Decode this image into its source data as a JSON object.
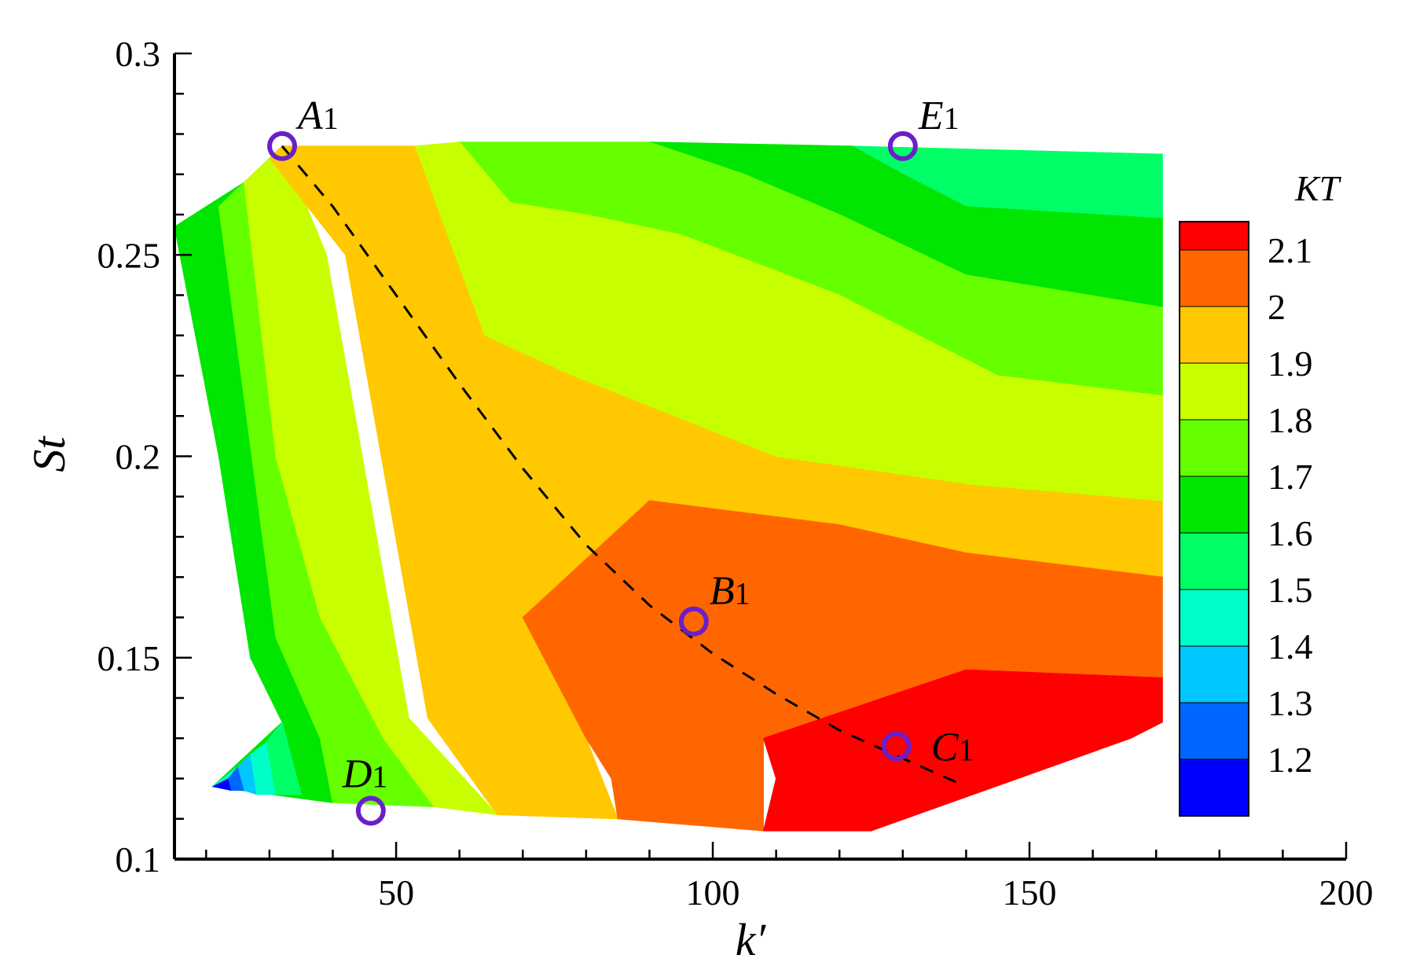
{
  "chart_data": {
    "type": "heatmap",
    "xlabel": "k′",
    "ylabel": "St",
    "xlim": [
      15,
      200
    ],
    "ylim": [
      0.1,
      0.3
    ],
    "x_ticks": [
      50,
      100,
      150,
      200
    ],
    "x_tick_labels": [
      "50",
      "100",
      "150",
      "200"
    ],
    "y_ticks": [
      0.1,
      0.15,
      0.2,
      0.25,
      0.3
    ],
    "y_tick_labels": [
      "0.1",
      "0.15",
      "0.2",
      "0.25",
      "0.3"
    ],
    "colorbar": {
      "title": "KT",
      "levels": [
        "2.1",
        "2",
        "1.9",
        "1.8",
        "1.7",
        "1.6",
        "1.5",
        "1.4",
        "1.3",
        "1.2"
      ],
      "colors": [
        "#ff0000",
        "#ff6600",
        "#ffc800",
        "#c8ff00",
        "#66ff00",
        "#00e600",
        "#00ff66",
        "#00ffc8",
        "#00c8ff",
        "#0066ff",
        "#0000ff"
      ]
    },
    "domain_outline": [
      [
        32,
        0.277
      ],
      [
        171,
        0.275
      ],
      [
        171,
        0.134
      ],
      [
        166,
        0.13
      ],
      [
        125,
        0.107
      ],
      [
        65,
        0.111
      ],
      [
        36,
        0.114
      ],
      [
        21,
        0.118
      ],
      [
        32,
        0.134
      ],
      [
        32,
        0.118
      ],
      [
        15,
        0.257
      ],
      [
        26,
        0.268
      ]
    ],
    "regions": [
      {
        "level": "1.6-1.7",
        "color": "#00e600",
        "polygon": [
          [
            15,
            0.257
          ],
          [
            26,
            0.268
          ],
          [
            32,
            0.277
          ],
          [
            37,
            0.15
          ],
          [
            40,
            0.114
          ],
          [
            21,
            0.118
          ],
          [
            32,
            0.134
          ],
          [
            27,
            0.15
          ],
          [
            22,
            0.2
          ]
        ]
      },
      {
        "level": "1.7-1.8",
        "color": "#66ff00",
        "polygon": [
          [
            22,
            0.262
          ],
          [
            26,
            0.268
          ],
          [
            32,
            0.277
          ],
          [
            45,
            0.14
          ],
          [
            56,
            0.113
          ],
          [
            40,
            0.114
          ],
          [
            38,
            0.13
          ],
          [
            31,
            0.155
          ]
        ]
      },
      {
        "level": "1.8-1.9",
        "color": "#c8ff00",
        "polygon": [
          [
            26,
            0.268
          ],
          [
            32,
            0.277
          ],
          [
            39,
            0.25
          ],
          [
            52,
            0.135
          ],
          [
            66,
            0.111
          ],
          [
            56,
            0.113
          ],
          [
            48,
            0.13
          ],
          [
            38,
            0.16
          ],
          [
            31,
            0.2
          ]
        ]
      },
      {
        "level": "1.9-2",
        "color": "#ffc800",
        "polygon": [
          [
            30,
            0.274
          ],
          [
            32,
            0.277
          ],
          [
            53,
            0.277
          ],
          [
            64,
            0.23
          ],
          [
            78,
            0.22
          ],
          [
            110,
            0.2
          ],
          [
            141,
            0.193
          ],
          [
            171,
            0.189
          ],
          [
            171,
            0.17
          ],
          [
            140,
            0.176
          ],
          [
            120,
            0.183
          ],
          [
            90,
            0.189
          ],
          [
            70,
            0.16
          ],
          [
            80,
            0.13
          ],
          [
            85,
            0.11
          ],
          [
            66,
            0.111
          ],
          [
            55,
            0.135
          ],
          [
            42,
            0.25
          ]
        ]
      },
      {
        "level": "2-2.1",
        "color": "#ff6600",
        "polygon": [
          [
            70,
            0.16
          ],
          [
            90,
            0.189
          ],
          [
            120,
            0.183
          ],
          [
            140,
            0.176
          ],
          [
            171,
            0.17
          ],
          [
            171,
            0.145
          ],
          [
            140,
            0.147
          ],
          [
            108,
            0.13
          ],
          [
            108,
            0.107
          ],
          [
            85,
            0.11
          ],
          [
            84,
            0.12
          ],
          [
            80,
            0.13
          ],
          [
            70,
            0.16
          ]
        ]
      },
      {
        "level": ">2.1",
        "color": "#ff0000",
        "polygon": [
          [
            108,
            0.13
          ],
          [
            140,
            0.147
          ],
          [
            171,
            0.145
          ],
          [
            171,
            0.134
          ],
          [
            166,
            0.13
          ],
          [
            125,
            0.107
          ],
          [
            108,
            0.107
          ],
          [
            110,
            0.12
          ]
        ]
      },
      {
        "level": "1.5-1.6",
        "color": "#00ff66",
        "polygon": [
          [
            122,
            0.277
          ],
          [
            171,
            0.275
          ],
          [
            171,
            0.259
          ],
          [
            140,
            0.262
          ],
          [
            130,
            0.27
          ]
        ]
      },
      {
        "level": "1.6-1.7 top",
        "color": "#00e600",
        "polygon": [
          [
            90,
            0.278
          ],
          [
            122,
            0.277
          ],
          [
            130,
            0.27
          ],
          [
            140,
            0.262
          ],
          [
            171,
            0.259
          ],
          [
            171,
            0.237
          ],
          [
            140,
            0.245
          ],
          [
            120,
            0.26
          ],
          [
            105,
            0.27
          ]
        ]
      },
      {
        "level": "1.7-1.8 top",
        "color": "#66ff00",
        "polygon": [
          [
            60,
            0.278
          ],
          [
            90,
            0.278
          ],
          [
            105,
            0.27
          ],
          [
            120,
            0.26
          ],
          [
            140,
            0.245
          ],
          [
            171,
            0.237
          ],
          [
            171,
            0.215
          ],
          [
            145,
            0.22
          ],
          [
            120,
            0.24
          ],
          [
            95,
            0.255
          ],
          [
            80,
            0.26
          ],
          [
            68,
            0.263
          ]
        ]
      },
      {
        "level": "1.9 band upper",
        "color": "#c8ff00",
        "polygon": [
          [
            53,
            0.277
          ],
          [
            60,
            0.278
          ],
          [
            68,
            0.263
          ],
          [
            80,
            0.26
          ],
          [
            95,
            0.255
          ],
          [
            120,
            0.24
          ],
          [
            145,
            0.22
          ],
          [
            171,
            0.215
          ],
          [
            171,
            0.189
          ],
          [
            141,
            0.193
          ],
          [
            110,
            0.2
          ],
          [
            78,
            0.22
          ],
          [
            64,
            0.23
          ]
        ]
      },
      {
        "level": "1.2-1.6 corner",
        "color": "#00ffc8",
        "polygon": [
          [
            21,
            0.118
          ],
          [
            30,
            0.117
          ],
          [
            35,
            0.116
          ],
          [
            32,
            0.134
          ],
          [
            29,
            0.128
          ]
        ]
      }
    ],
    "corner_bands": [
      {
        "color": "#0000ff",
        "polygon": [
          [
            21,
            0.118
          ],
          [
            24,
            0.117
          ],
          [
            23.5,
            0.12
          ]
        ]
      },
      {
        "color": "#0066ff",
        "polygon": [
          [
            23.5,
            0.12
          ],
          [
            24,
            0.117
          ],
          [
            26,
            0.117
          ],
          [
            25,
            0.123
          ]
        ]
      },
      {
        "color": "#00c8ff",
        "polygon": [
          [
            25,
            0.123
          ],
          [
            26,
            0.117
          ],
          [
            28,
            0.116
          ],
          [
            27,
            0.126
          ]
        ]
      },
      {
        "color": "#00ffc8",
        "polygon": [
          [
            27,
            0.126
          ],
          [
            28,
            0.116
          ],
          [
            31,
            0.116
          ],
          [
            29.5,
            0.129
          ]
        ]
      },
      {
        "color": "#00ff66",
        "polygon": [
          [
            29.5,
            0.129
          ],
          [
            31,
            0.116
          ],
          [
            35,
            0.116
          ],
          [
            32,
            0.134
          ]
        ]
      }
    ],
    "dashed_curve": {
      "x": [
        32,
        40,
        50,
        60,
        70,
        80,
        90,
        100,
        110,
        120,
        130,
        140
      ],
      "y": [
        0.277,
        0.262,
        0.24,
        0.218,
        0.197,
        0.178,
        0.163,
        0.151,
        0.141,
        0.132,
        0.125,
        0.118
      ]
    },
    "points": [
      {
        "label": "A",
        "sub": "1",
        "x": 32,
        "y": 0.277,
        "label_pos": "upper-right"
      },
      {
        "label": "E",
        "sub": "1",
        "x": 130,
        "y": 0.277,
        "label_pos": "upper-right"
      },
      {
        "label": "B",
        "sub": "1",
        "x": 97,
        "y": 0.159,
        "label_pos": "upper-right"
      },
      {
        "label": "C",
        "sub": "1",
        "x": 129,
        "y": 0.128,
        "label_pos": "right"
      },
      {
        "label": "D",
        "sub": "1",
        "x": 46,
        "y": 0.112,
        "label_pos": "upper-left"
      }
    ]
  }
}
